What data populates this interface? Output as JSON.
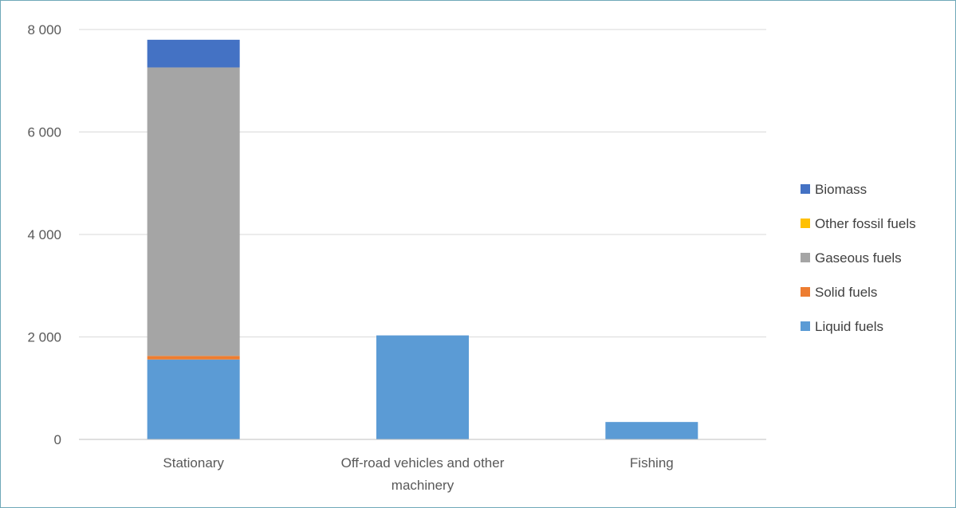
{
  "chart_data": {
    "type": "bar",
    "stacked": true,
    "title": "",
    "xlabel": "",
    "ylabel": "",
    "categories": [
      "Stationary",
      "Off-road vehicles and other machinery",
      "Fishing"
    ],
    "category_label_lines": [
      [
        "Stationary"
      ],
      [
        "Off-road vehicles and other",
        "machinery"
      ],
      [
        "Fishing"
      ]
    ],
    "series": [
      {
        "name": "Liquid fuels",
        "color": "#5b9bd5",
        "values": [
          1560,
          2030,
          340
        ]
      },
      {
        "name": "Solid fuels",
        "color": "#ed7d31",
        "values": [
          70,
          0,
          0
        ]
      },
      {
        "name": "Gaseous fuels",
        "color": "#a5a5a5",
        "values": [
          5630,
          0,
          0
        ]
      },
      {
        "name": "Other fossil fuels",
        "color": "#ffc000",
        "values": [
          0,
          0,
          0
        ]
      },
      {
        "name": "Biomass",
        "color": "#4472c4",
        "values": [
          540,
          0,
          0
        ]
      }
    ],
    "ylim": [
      0,
      8000
    ],
    "yticks": [
      0,
      2000,
      4000,
      6000,
      8000
    ],
    "ytick_labels": [
      "0",
      "2 000",
      "4 000",
      "6 000",
      "8 000"
    ],
    "grid": true,
    "legend_position": "right",
    "legend_order": [
      "Biomass",
      "Other fossil fuels",
      "Gaseous fuels",
      "Solid fuels",
      "Liquid fuels"
    ]
  }
}
